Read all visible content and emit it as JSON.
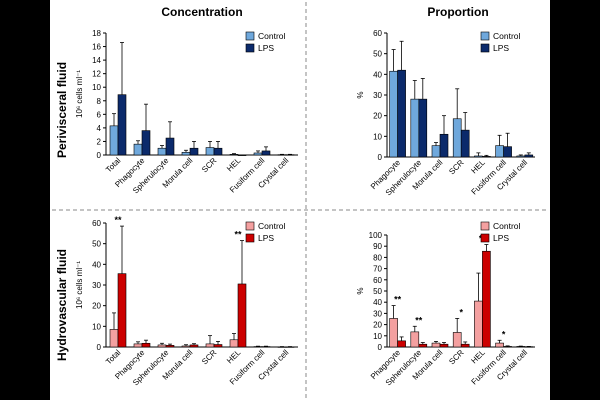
{
  "columns": {
    "left": "Concentration",
    "right": "Proportion"
  },
  "rows": {
    "top": "Perivisceral fluid",
    "bottom": "Hydrovascular fluid"
  },
  "colors": {
    "frame": "#000000",
    "perivisceral_control": "#6fa8dc",
    "perivisceral_lps": "#0b2a6b",
    "hydrovascular_control": "#f4a0a0",
    "hydrovascular_lps": "#cc0000",
    "divider": "#888888"
  },
  "chart_data": [
    {
      "type": "bar",
      "id": "peri-conc",
      "row": "top",
      "categories": [
        "Total",
        "Phagocyte",
        "Spherulocyte",
        "Morula cell",
        "SCR",
        "HEL",
        "Fusiform cell",
        "Crystal cell"
      ],
      "ylabel": "10⁶ cells ml⁻¹",
      "ylim": [
        0,
        18
      ],
      "yticks": [
        0,
        2,
        4,
        6,
        8,
        10,
        12,
        14,
        16,
        18
      ],
      "legend": "top-right",
      "series": [
        {
          "name": "Control",
          "values": [
            4.3,
            1.6,
            1.0,
            0.4,
            1.1,
            0.1,
            0.3,
            0.05
          ],
          "errors": [
            1.8,
            0.5,
            0.4,
            0.3,
            0.9,
            0.1,
            0.3,
            0.05
          ]
        },
        {
          "name": "LPS",
          "values": [
            8.9,
            3.6,
            2.5,
            1.0,
            1.0,
            0.0,
            0.6,
            0.05
          ],
          "errors": [
            7.7,
            3.9,
            2.4,
            1.0,
            1.0,
            0.0,
            0.6,
            0.05
          ]
        }
      ],
      "annotations": []
    },
    {
      "type": "bar",
      "id": "peri-prop",
      "row": "top",
      "categories": [
        "Phagocyte",
        "Spherulocyte",
        "Morula cell",
        "SCR",
        "HEL",
        "Fusiform cell",
        "Crystal cell"
      ],
      "ylabel": "%",
      "ylim": [
        0,
        60
      ],
      "yticks": [
        0,
        10,
        20,
        30,
        40,
        50,
        60
      ],
      "legend": "top-right",
      "series": [
        {
          "name": "Control",
          "values": [
            41.5,
            28.0,
            5.5,
            18.5,
            0.5,
            5.5,
            0.5
          ],
          "errors": [
            10.5,
            9.0,
            1.5,
            14.5,
            1.5,
            5.0,
            0.5
          ]
        },
        {
          "name": "LPS",
          "values": [
            42.0,
            28.0,
            11.0,
            13.0,
            0.3,
            5.0,
            1.0
          ],
          "errors": [
            14.0,
            10.0,
            9.0,
            8.5,
            0.5,
            6.5,
            1.0
          ]
        }
      ],
      "annotations": []
    },
    {
      "type": "bar",
      "id": "hydro-conc",
      "row": "bottom",
      "categories": [
        "Total",
        "Phagocyte",
        "Spherulocyte",
        "Morula cell",
        "SCR",
        "HEL",
        "Fusiform cell",
        "Crystal cell"
      ],
      "ylabel": "10⁶ cells ml⁻¹",
      "ylim": [
        0,
        60
      ],
      "yticks": [
        0,
        10,
        20,
        30,
        40,
        50,
        60
      ],
      "legend": "top-right",
      "series": [
        {
          "name": "Control",
          "values": [
            8.5,
            1.5,
            1.0,
            0.5,
            1.5,
            3.5,
            0.2,
            0.1
          ],
          "errors": [
            8.0,
            1.0,
            0.8,
            0.6,
            4.0,
            3.0,
            0.2,
            0.1
          ]
        },
        {
          "name": "LPS",
          "values": [
            35.5,
            1.8,
            0.8,
            1.0,
            1.2,
            30.5,
            0.2,
            0.1
          ],
          "errors": [
            23.0,
            1.5,
            0.6,
            0.6,
            1.5,
            21.0,
            0.2,
            0.1
          ]
        }
      ],
      "annotations": [
        {
          "category": "Total",
          "text": "**"
        },
        {
          "category": "HEL",
          "text": "**"
        }
      ]
    },
    {
      "type": "bar",
      "id": "hydro-prop",
      "row": "bottom",
      "categories": [
        "Phagocyte",
        "Spherulocyte",
        "Morula cell",
        "SCR",
        "HEL",
        "Fusiform cell",
        "Crystal cell"
      ],
      "ylabel": "%",
      "ylim": [
        0,
        100
      ],
      "yticks": [
        0,
        10,
        20,
        30,
        40,
        50,
        60,
        70,
        80,
        90,
        100
      ],
      "legend": "top-right",
      "series": [
        {
          "name": "Control",
          "values": [
            25.5,
            13.5,
            3.5,
            13.0,
            41.0,
            3.5,
            0.5
          ],
          "errors": [
            11.5,
            5.0,
            1.5,
            12.5,
            25.0,
            2.5,
            0.3
          ]
        },
        {
          "name": "LPS",
          "values": [
            5.5,
            2.5,
            2.5,
            2.5,
            85.5,
            0.5,
            0.3
          ],
          "errors": [
            3.5,
            1.5,
            1.5,
            2.0,
            6.0,
            0.5,
            0.2
          ]
        }
      ],
      "annotations": [
        {
          "category": "Phagocyte",
          "text": "**"
        },
        {
          "category": "Spherulocyte",
          "text": "**"
        },
        {
          "category": "SCR",
          "text": "*"
        },
        {
          "category": "HEL",
          "text": "**"
        },
        {
          "category": "Fusiform cell",
          "text": "*"
        }
      ]
    }
  ]
}
